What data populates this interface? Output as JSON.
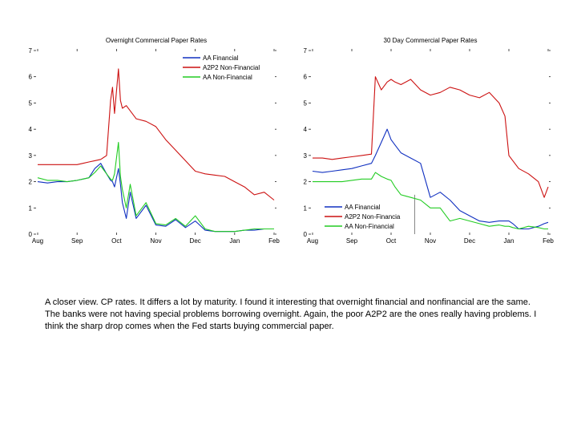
{
  "charts": [
    {
      "title": "Overnight Commercial Paper Rates",
      "y_ticks": [
        "0",
        "1",
        "2",
        "3",
        "4",
        "5",
        "6",
        "7"
      ],
      "x_ticks": [
        "Aug",
        "Sep",
        "Oct",
        "Nov",
        "Dec",
        "Jan",
        "Feb"
      ],
      "legend": [
        "AA Financial",
        "A2P2 Non-Financial",
        "AA Non-Financial"
      ]
    },
    {
      "title": "30 Day Commercial Paper Rates",
      "y_ticks": [
        "0",
        "1",
        "2",
        "3",
        "4",
        "5",
        "6",
        "7"
      ],
      "x_ticks": [
        "Aug",
        "Sep",
        "Oct",
        "Nov",
        "Dec",
        "Jan",
        "Feb"
      ],
      "legend": [
        "AA Financial",
        "A2P2 Non-Financia",
        "AA Non-Financial"
      ]
    }
  ],
  "caption": "A closer view. CP rates. It differs a lot by maturity. I found it interesting that overnight financial and nonfinancial are the same. The banks were not having special problems borrowing overnight. Again, the poor A2P2 are the ones really having problems.  I think the sharp drop comes when the Fed starts buying commercial paper.",
  "chart_data": [
    {
      "type": "line",
      "title": "Overnight Commercial Paper Rates",
      "x_ticks": [
        "Aug",
        "Sep",
        "Oct",
        "Nov",
        "Dec",
        "Jan",
        "Feb"
      ],
      "x": [
        0,
        0.25,
        0.5,
        0.75,
        1,
        1.15,
        1.3,
        1.45,
        1.6,
        1.75,
        1.85,
        1.9,
        1.95,
        2.05,
        2.1,
        2.15,
        2.25,
        2.35,
        2.5,
        2.75,
        3,
        3.25,
        3.5,
        3.75,
        4,
        4.25,
        4.5,
        4.75,
        5,
        5.25,
        5.5,
        5.75,
        6
      ],
      "ylim": [
        0,
        7
      ],
      "xlim": [
        0,
        6
      ],
      "series": [
        {
          "name": "AA Financial",
          "color": "#1030c0",
          "values": [
            2.0,
            1.95,
            2.0,
            2.0,
            2.05,
            2.1,
            2.15,
            2.5,
            2.7,
            2.3,
            2.05,
            2.0,
            1.8,
            2.5,
            1.9,
            1.2,
            0.6,
            1.6,
            0.6,
            1.1,
            0.35,
            0.3,
            0.55,
            0.25,
            0.5,
            0.15,
            0.1,
            0.1,
            0.1,
            0.15,
            0.15,
            0.2,
            0.2
          ]
        },
        {
          "name": "A2P2 Non-Financial",
          "color": "#cc1111",
          "values": [
            2.65,
            2.65,
            2.65,
            2.65,
            2.65,
            2.7,
            2.75,
            2.8,
            2.85,
            3.0,
            5.1,
            5.6,
            4.6,
            6.3,
            5.1,
            4.8,
            4.9,
            4.7,
            4.4,
            4.3,
            4.1,
            3.6,
            3.2,
            2.8,
            2.4,
            2.3,
            2.25,
            2.2,
            2.0,
            1.8,
            1.5,
            1.6,
            1.3
          ]
        },
        {
          "name": "AA Non-Financial",
          "color": "#22cc22",
          "values": [
            2.15,
            2.05,
            2.05,
            2.0,
            2.05,
            2.1,
            2.15,
            2.35,
            2.6,
            2.3,
            2.1,
            2.05,
            2.3,
            3.5,
            2.2,
            1.7,
            1.0,
            1.9,
            0.7,
            1.2,
            0.4,
            0.35,
            0.6,
            0.3,
            0.7,
            0.2,
            0.1,
            0.1,
            0.1,
            0.15,
            0.2,
            0.2,
            0.2
          ]
        }
      ]
    },
    {
      "type": "line",
      "title": "30 Day Commercial Paper Rates",
      "x_ticks": [
        "Aug",
        "Sep",
        "Oct",
        "Nov",
        "Dec",
        "Jan",
        "Feb"
      ],
      "x": [
        0,
        0.25,
        0.5,
        0.75,
        1,
        1.25,
        1.5,
        1.6,
        1.75,
        1.9,
        2.0,
        2.1,
        2.25,
        2.5,
        2.75,
        3.0,
        3.25,
        3.5,
        3.75,
        4.0,
        4.25,
        4.5,
        4.75,
        4.9,
        5.0,
        5.1,
        5.25,
        5.5,
        5.75,
        5.9,
        6
      ],
      "ylim": [
        0,
        7
      ],
      "xlim": [
        0,
        6
      ],
      "series": [
        {
          "name": "AA Financial",
          "color": "#1030c0",
          "values": [
            2.4,
            2.35,
            2.4,
            2.45,
            2.5,
            2.6,
            2.7,
            3.0,
            3.5,
            4.0,
            3.6,
            3.4,
            3.1,
            2.9,
            2.7,
            1.4,
            1.6,
            1.3,
            0.9,
            0.7,
            0.5,
            0.45,
            0.5,
            0.5,
            0.5,
            0.4,
            0.2,
            0.2,
            0.3,
            0.4,
            0.45
          ]
        },
        {
          "name": "A2P2 Non-Financia",
          "color": "#cc1111",
          "values": [
            2.9,
            2.9,
            2.85,
            2.9,
            2.95,
            3.0,
            3.05,
            6.0,
            5.5,
            5.8,
            5.9,
            5.8,
            5.7,
            5.9,
            5.5,
            5.3,
            5.4,
            5.6,
            5.5,
            5.3,
            5.2,
            5.4,
            5.0,
            4.5,
            3.0,
            2.8,
            2.5,
            2.3,
            2.0,
            1.4,
            1.8
          ]
        },
        {
          "name": "AA Non-Financial",
          "color": "#22cc22",
          "values": [
            2.0,
            2.0,
            2.0,
            2.0,
            2.05,
            2.1,
            2.1,
            2.35,
            2.2,
            2.1,
            2.05,
            1.8,
            1.5,
            1.4,
            1.3,
            1.0,
            1.0,
            0.5,
            0.6,
            0.5,
            0.4,
            0.3,
            0.35,
            0.3,
            0.3,
            0.25,
            0.2,
            0.3,
            0.25,
            0.2,
            0.2
          ]
        }
      ]
    }
  ]
}
